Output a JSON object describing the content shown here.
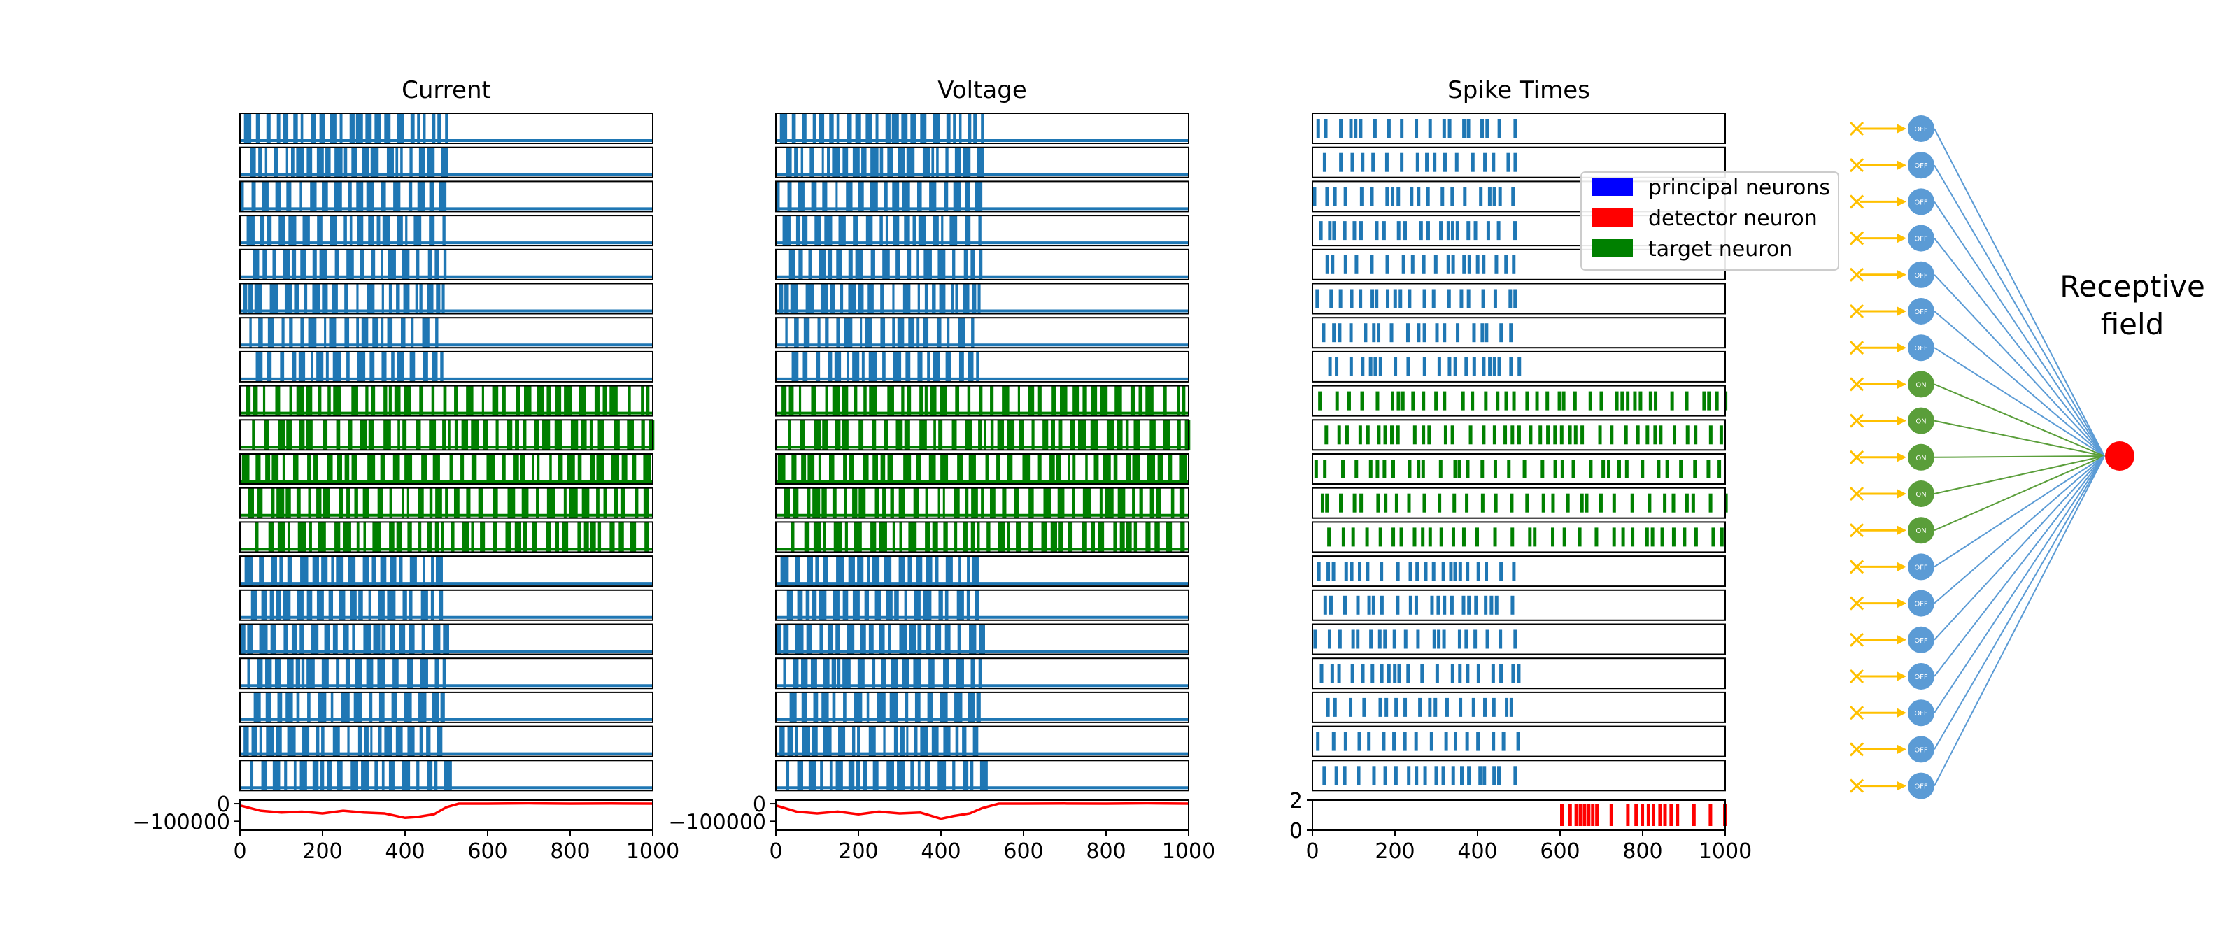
{
  "colors": {
    "principal": "#1f77b4",
    "target": "#008000",
    "detector": "#ff0000",
    "legend_principal": "#0000ff",
    "node_off": "#5b9bd5",
    "node_on": "#5a9e3a",
    "input_arrow": "#ffc000",
    "panel_border": "#000000"
  },
  "chart_data": [
    {
      "type": "raster",
      "title": "Current",
      "xlim": [
        0,
        1000
      ],
      "xticks": [
        "0",
        "200",
        "400",
        "600",
        "800",
        "1000"
      ],
      "rows": 20,
      "row_groups": [
        {
          "rows": [
            0,
            1,
            2,
            3,
            4,
            5,
            6,
            7
          ],
          "color_key": "principal",
          "active_range": [
            0,
            500
          ]
        },
        {
          "rows": [
            8,
            9,
            10,
            11,
            12
          ],
          "color_key": "target",
          "active_range": [
            0,
            1000
          ]
        },
        {
          "rows": [
            13,
            14,
            15,
            16,
            17,
            18,
            19
          ],
          "color_key": "principal",
          "active_range": [
            0,
            500
          ]
        }
      ],
      "trace": {
        "name": "detector",
        "color_key": "detector",
        "yticks": [
          "0",
          "−100000"
        ],
        "ylim": [
          -150000,
          20000
        ],
        "points": [
          [
            0,
            -10000
          ],
          [
            50,
            -40000
          ],
          [
            100,
            -50000
          ],
          [
            150,
            -45000
          ],
          [
            200,
            -55000
          ],
          [
            250,
            -40000
          ],
          [
            300,
            -50000
          ],
          [
            350,
            -55000
          ],
          [
            400,
            -80000
          ],
          [
            430,
            -75000
          ],
          [
            470,
            -60000
          ],
          [
            500,
            -20000
          ],
          [
            530,
            0
          ],
          [
            600,
            0
          ],
          [
            700,
            2000
          ],
          [
            800,
            0
          ],
          [
            900,
            1000
          ],
          [
            1000,
            0
          ]
        ]
      }
    },
    {
      "type": "raster",
      "title": "Voltage",
      "xlim": [
        0,
        1000
      ],
      "xticks": [
        "0",
        "200",
        "400",
        "600",
        "800",
        "1000"
      ],
      "rows": 20,
      "row_groups": [
        {
          "rows": [
            0,
            1,
            2,
            3,
            4,
            5,
            6,
            7
          ],
          "color_key": "principal",
          "active_range": [
            0,
            500
          ]
        },
        {
          "rows": [
            8,
            9,
            10,
            11,
            12
          ],
          "color_key": "target",
          "active_range": [
            0,
            1000
          ]
        },
        {
          "rows": [
            13,
            14,
            15,
            16,
            17,
            18,
            19
          ],
          "color_key": "principal",
          "active_range": [
            0,
            500
          ]
        }
      ],
      "trace": {
        "name": "detector",
        "color_key": "detector",
        "yticks": [
          "0",
          "−100000"
        ],
        "ylim": [
          -150000,
          20000
        ],
        "points": [
          [
            0,
            -10000
          ],
          [
            50,
            -45000
          ],
          [
            100,
            -55000
          ],
          [
            150,
            -45000
          ],
          [
            200,
            -60000
          ],
          [
            250,
            -45000
          ],
          [
            300,
            -55000
          ],
          [
            350,
            -50000
          ],
          [
            400,
            -85000
          ],
          [
            430,
            -70000
          ],
          [
            470,
            -55000
          ],
          [
            500,
            -25000
          ],
          [
            540,
            0
          ],
          [
            600,
            0
          ],
          [
            700,
            1000
          ],
          [
            800,
            0
          ],
          [
            900,
            2000
          ],
          [
            1000,
            0
          ]
        ]
      }
    },
    {
      "type": "raster",
      "title": "Spike Times",
      "xlim": [
        0,
        1000
      ],
      "xticks": [
        "0",
        "200",
        "400",
        "600",
        "800",
        "1000"
      ],
      "rows": 20,
      "row_groups": [
        {
          "rows": [
            0,
            1,
            2,
            3,
            4,
            5,
            6,
            7
          ],
          "color_key": "principal",
          "active_range": [
            0,
            500
          ]
        },
        {
          "rows": [
            8,
            9,
            10,
            11,
            12
          ],
          "color_key": "target",
          "active_range": [
            0,
            1000
          ]
        },
        {
          "rows": [
            13,
            14,
            15,
            16,
            17,
            18,
            19
          ],
          "color_key": "principal",
          "active_range": [
            0,
            500
          ]
        }
      ],
      "spike_panel": {
        "name": "detector",
        "color_key": "detector",
        "yticks": [
          "2",
          "0"
        ],
        "ylim": [
          0,
          2
        ],
        "spikes": [
          600,
          620,
          635,
          645,
          655,
          665,
          675,
          685,
          720,
          760,
          780,
          795,
          810,
          822,
          838,
          850,
          865,
          880,
          920,
          960,
          995
        ]
      },
      "legend": {
        "placement": "upper-right",
        "entries": [
          {
            "label": "principal neurons",
            "color_key": "legend_principal"
          },
          {
            "label": "detector neuron",
            "color_key": "detector"
          },
          {
            "label": "target neuron",
            "color_key": "target"
          }
        ]
      }
    }
  ],
  "receptive_field": {
    "title_line1": "Receptive",
    "title_line2": "field",
    "nodes": [
      {
        "label": "OFF",
        "color_key": "node_off"
      },
      {
        "label": "OFF",
        "color_key": "node_off"
      },
      {
        "label": "OFF",
        "color_key": "node_off"
      },
      {
        "label": "OFF",
        "color_key": "node_off"
      },
      {
        "label": "OFF",
        "color_key": "node_off"
      },
      {
        "label": "OFF",
        "color_key": "node_off"
      },
      {
        "label": "OFF",
        "color_key": "node_off"
      },
      {
        "label": "ON",
        "color_key": "node_on"
      },
      {
        "label": "ON",
        "color_key": "node_on"
      },
      {
        "label": "ON",
        "color_key": "node_on"
      },
      {
        "label": "ON",
        "color_key": "node_on"
      },
      {
        "label": "ON",
        "color_key": "node_on"
      },
      {
        "label": "OFF",
        "color_key": "node_off"
      },
      {
        "label": "OFF",
        "color_key": "node_off"
      },
      {
        "label": "OFF",
        "color_key": "node_off"
      },
      {
        "label": "OFF",
        "color_key": "node_off"
      },
      {
        "label": "OFF",
        "color_key": "node_off"
      },
      {
        "label": "OFF",
        "color_key": "node_off"
      },
      {
        "label": "OFF",
        "color_key": "node_off"
      }
    ],
    "output": {
      "color_key": "detector"
    }
  }
}
